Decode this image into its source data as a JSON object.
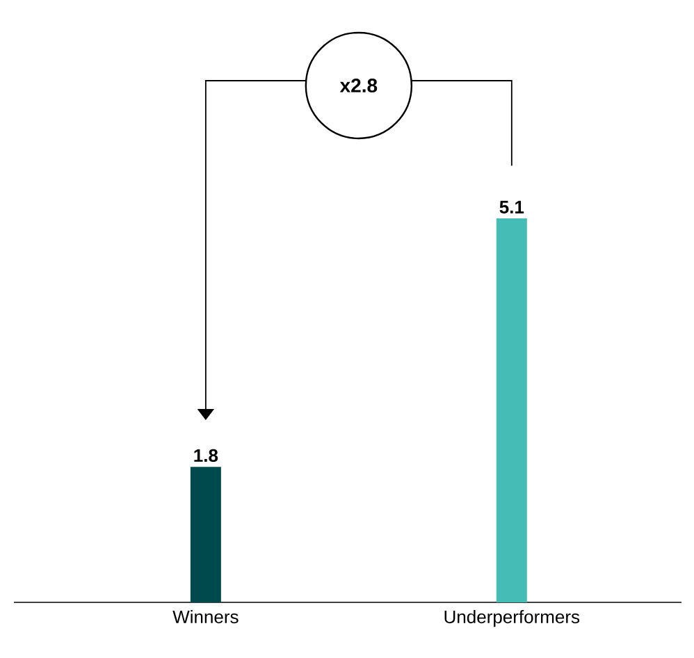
{
  "chart_data": {
    "type": "bar",
    "categories": [
      "Winners",
      "Underperformers"
    ],
    "values": [
      1.8,
      5.1
    ],
    "colors": [
      "#004a4d",
      "#45bcb5"
    ],
    "data_labels": true,
    "annotations": [
      "x2.8"
    ]
  }
}
